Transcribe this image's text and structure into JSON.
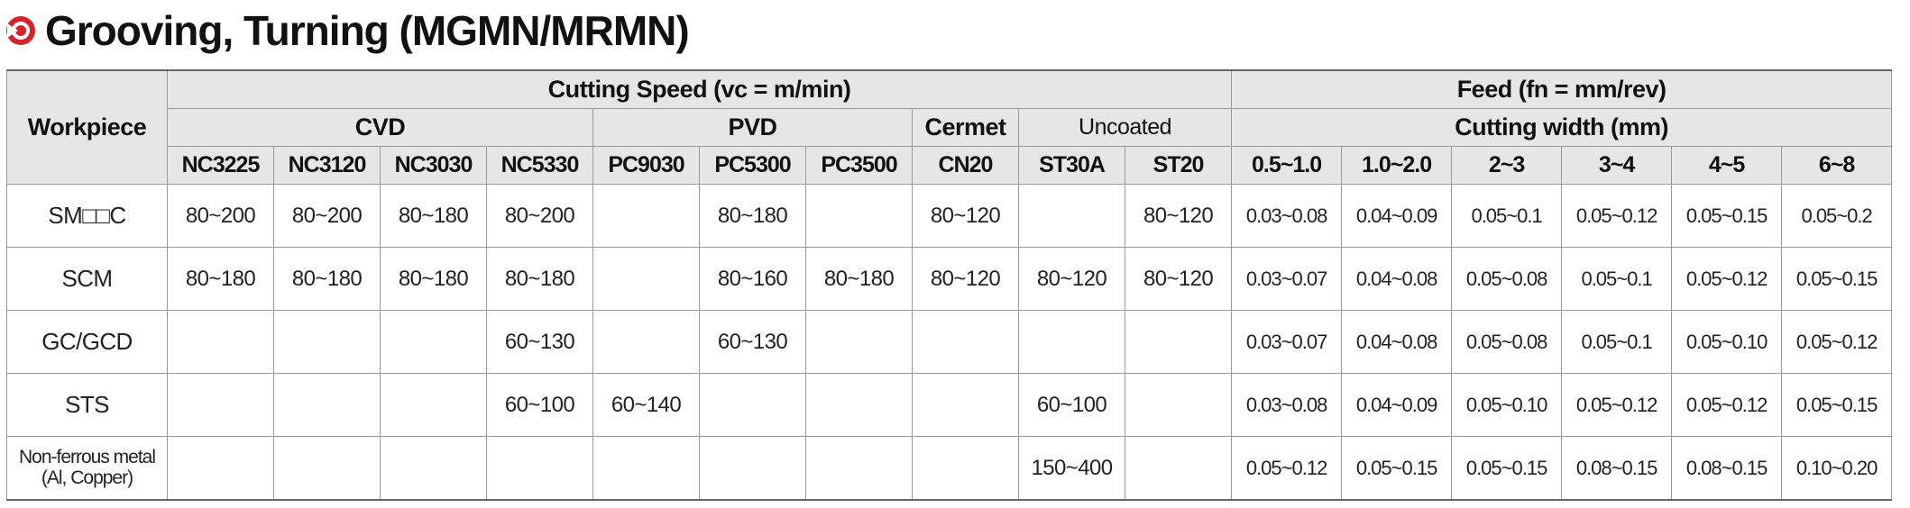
{
  "title": "Grooving, Turning (MGMN/MRMN)",
  "table": {
    "header": {
      "workpiece": "Workpiece",
      "cutting_speed": "Cutting Speed (vc = m/min)",
      "feed": "Feed (fn = mm/rev)",
      "groups": [
        "CVD",
        "PVD",
        "Cermet",
        "Uncoated"
      ],
      "cutting_width": "Cutting width (mm)",
      "grades": [
        "NC3225",
        "NC3120",
        "NC3030",
        "NC5330",
        "PC9030",
        "PC5300",
        "PC3500",
        "CN20",
        "ST30A",
        "ST20"
      ],
      "widths": [
        "0.5~1.0",
        "1.0~2.0",
        "2~3",
        "3~4",
        "4~5",
        "6~8"
      ]
    },
    "rows": [
      [
        "SM□□C",
        "80~200",
        "80~200",
        "80~180",
        "80~200",
        null,
        "80~180",
        null,
        "80~120",
        null,
        "80~120",
        "0.03~0.08",
        "0.04~0.09",
        "0.05~0.1",
        "0.05~0.12",
        "0.05~0.15",
        "0.05~0.2"
      ],
      [
        "SCM",
        "80~180",
        "80~180",
        "80~180",
        "80~180",
        null,
        "80~160",
        "80~180",
        "80~120",
        "80~120",
        "80~120",
        "0.03~0.07",
        "0.04~0.08",
        "0.05~0.08",
        "0.05~0.1",
        "0.05~0.12",
        "0.05~0.15"
      ],
      [
        "GC/GCD",
        null,
        null,
        null,
        "60~130",
        null,
        "60~130",
        null,
        null,
        null,
        null,
        "0.03~0.07",
        "0.04~0.08",
        "0.05~0.08",
        "0.05~0.1",
        "0.05~0.10",
        "0.05~0.12"
      ],
      [
        "STS",
        null,
        null,
        null,
        "60~100",
        "60~140",
        null,
        null,
        null,
        "60~100",
        null,
        "0.03~0.08",
        "0.04~0.09",
        "0.05~0.10",
        "0.05~0.12",
        "0.05~0.12",
        "0.05~0.15"
      ],
      [
        "Non-ferrous metal\n(Al, Copper)",
        null,
        null,
        null,
        null,
        null,
        null,
        null,
        null,
        "150~400",
        null,
        "0.05~0.12",
        "0.05~0.15",
        "0.05~0.15",
        "0.08~0.15",
        "0.08~0.15",
        "0.10~0.20"
      ]
    ]
  }
}
